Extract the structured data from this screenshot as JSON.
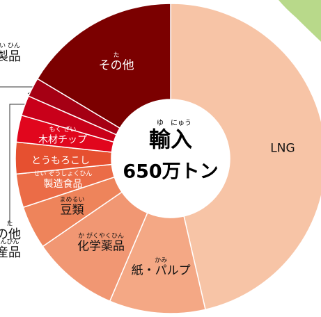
{
  "chart_data": {
    "type": "donut",
    "center_title": "輸入",
    "center_title_ruby": "ゆ　にゅう",
    "center_value": "650万トン",
    "categories": [
      "LNG",
      "紙・パルプ",
      "化学薬品",
      "豆類",
      "製造食品",
      "とうもろこし",
      "木材チップ",
      null,
      null,
      "その他"
    ],
    "ruby": [
      null,
      "かみ",
      "か がくやくひん",
      "まめるい",
      "せい ぞうしょくひん",
      null,
      "もく ざい",
      null,
      null,
      "た"
    ],
    "values": [
      46.4,
      10,
      9,
      4.5,
      3.5,
      3.3,
      2.8,
      2.1,
      2,
      16.4
    ],
    "colors": [
      "#f7c4a6",
      "#f4a885",
      "#f19773",
      "#ee845b",
      "#eb6c47",
      "#e65030",
      "#e1061d",
      "#c9001a",
      "#a50014",
      "#7b0000"
    ],
    "annotations": [
      {
        "text": "製品",
        "ruby": "い ひん"
      },
      {
        "text": "の他",
        "ruby": "た"
      },
      {
        "text": "産品",
        "ruby": "んぴん"
      }
    ]
  }
}
